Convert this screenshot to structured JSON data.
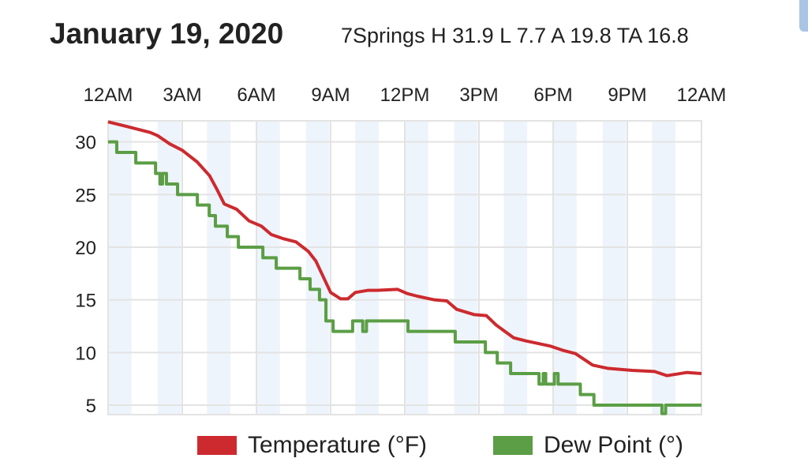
{
  "chart_data": {
    "type": "line",
    "title": "January 19, 2020",
    "subtitle": "7Springs H 31.9 L 7.7 A 19.8 TA 16.8",
    "x_unit": "hours since midnight",
    "xlim": [
      0,
      24
    ],
    "ylim": [
      4.1,
      32
    ],
    "x_ticks": [
      0,
      3,
      6,
      9,
      12,
      15,
      18,
      21,
      24
    ],
    "x_tick_labels": [
      "12AM",
      "3AM",
      "6AM",
      "9AM",
      "12PM",
      "3PM",
      "6PM",
      "9PM",
      "12AM"
    ],
    "x_tick_position": "top",
    "y_ticks": [
      5,
      10,
      15,
      20,
      25,
      30
    ],
    "y_tick_labels": [
      "5",
      "10",
      "15",
      "20",
      "25",
      "30"
    ],
    "grid": true,
    "shaded_hours": "alternate hours shaded light blue",
    "legend_placement": "bottom",
    "series": [
      {
        "name": "Temperature (°F)",
        "color": "#cc2a2f",
        "step": false,
        "points": [
          [
            0,
            31.9
          ],
          [
            0.7,
            31.5
          ],
          [
            1.7,
            30.9
          ],
          [
            2.0,
            30.6
          ],
          [
            2.5,
            29.8
          ],
          [
            3.0,
            29.2
          ],
          [
            3.6,
            28.1
          ],
          [
            4.1,
            26.8
          ],
          [
            4.4,
            25.5
          ],
          [
            4.7,
            24.1
          ],
          [
            5.2,
            23.6
          ],
          [
            5.7,
            22.5
          ],
          [
            6.2,
            22.0
          ],
          [
            6.6,
            21.2
          ],
          [
            7.1,
            20.8
          ],
          [
            7.6,
            20.5
          ],
          [
            8.1,
            19.6
          ],
          [
            8.4,
            18.7
          ],
          [
            8.7,
            17.2
          ],
          [
            9.0,
            15.7
          ],
          [
            9.4,
            15.1
          ],
          [
            9.7,
            15.1
          ],
          [
            10.0,
            15.7
          ],
          [
            10.5,
            15.9
          ],
          [
            10.9,
            15.9
          ],
          [
            11.7,
            16.0
          ],
          [
            12.1,
            15.6
          ],
          [
            12.5,
            15.35
          ],
          [
            13.2,
            15.0
          ],
          [
            13.7,
            14.9
          ],
          [
            14.1,
            14.1
          ],
          [
            14.8,
            13.6
          ],
          [
            15.3,
            13.5
          ],
          [
            15.7,
            12.6
          ],
          [
            16.4,
            11.4
          ],
          [
            16.9,
            11.1
          ],
          [
            17.3,
            10.9
          ],
          [
            17.9,
            10.6
          ],
          [
            18.4,
            10.2
          ],
          [
            18.9,
            9.9
          ],
          [
            19.6,
            8.8
          ],
          [
            20.2,
            8.5
          ],
          [
            21.2,
            8.3
          ],
          [
            22.1,
            8.2
          ],
          [
            22.6,
            7.8
          ],
          [
            23.4,
            8.1
          ],
          [
            24,
            8.0
          ]
        ]
      },
      {
        "name": "Dew Point (°)",
        "color": "#5b9e45",
        "step": true,
        "points": [
          [
            0,
            30
          ],
          [
            0.35,
            29
          ],
          [
            1.12,
            28
          ],
          [
            1.92,
            27
          ],
          [
            2.1,
            26
          ],
          [
            2.2,
            27
          ],
          [
            2.36,
            26
          ],
          [
            2.81,
            25
          ],
          [
            3.61,
            24
          ],
          [
            4.09,
            23
          ],
          [
            4.34,
            22
          ],
          [
            4.82,
            21
          ],
          [
            5.27,
            20
          ],
          [
            6.26,
            19
          ],
          [
            6.8,
            18
          ],
          [
            7.76,
            17
          ],
          [
            8.17,
            16
          ],
          [
            8.55,
            15
          ],
          [
            8.81,
            13
          ],
          [
            9.1,
            12
          ],
          [
            9.89,
            13
          ],
          [
            10.3,
            12
          ],
          [
            10.45,
            13
          ],
          [
            12.13,
            12
          ],
          [
            14.04,
            11
          ],
          [
            15.26,
            10
          ],
          [
            15.74,
            9
          ],
          [
            16.28,
            8
          ],
          [
            17.43,
            7
          ],
          [
            17.6,
            8
          ],
          [
            17.7,
            7
          ],
          [
            18.05,
            8
          ],
          [
            18.2,
            7
          ],
          [
            19.1,
            6
          ],
          [
            19.65,
            5
          ],
          [
            22.4,
            4.2
          ],
          [
            22.55,
            5
          ],
          [
            24,
            5
          ]
        ]
      }
    ]
  }
}
